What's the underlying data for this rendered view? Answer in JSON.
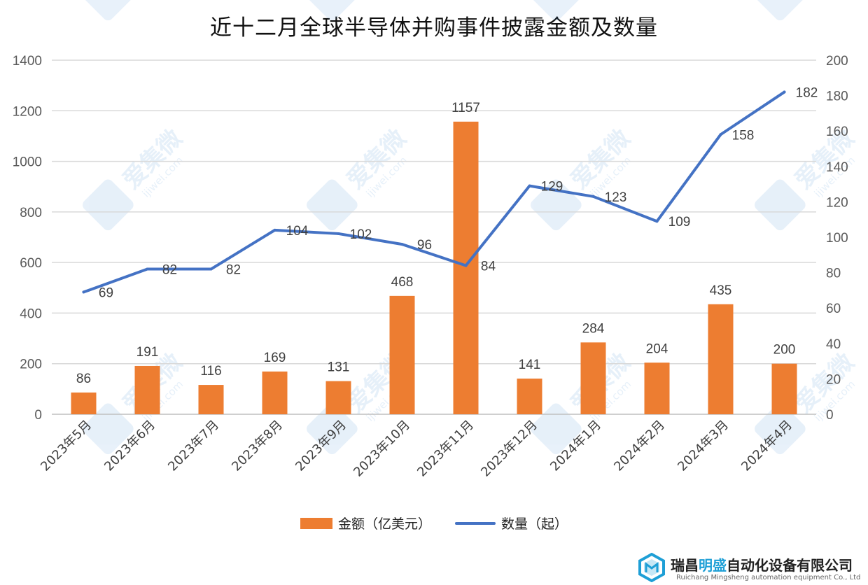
{
  "chart_data": {
    "type": "bar",
    "title": "近十二月全球半导体并购事件披露金额及数量",
    "categories": [
      "2023年5月",
      "2023年6月",
      "2023年7月",
      "2023年8月",
      "2023年9月",
      "2023年10月",
      "2023年11月",
      "2023年12月",
      "2024年1月",
      "2024年2月",
      "2024年3月",
      "2024年4月"
    ],
    "series": [
      {
        "name": "金额（亿美元）",
        "type": "bar",
        "axis": "left",
        "color": "#ed7d31",
        "values": [
          86,
          191,
          116,
          169,
          131,
          468,
          1157,
          141,
          284,
          204,
          435,
          200
        ]
      },
      {
        "name": "数量（起）",
        "type": "line",
        "axis": "right",
        "color": "#4472c4",
        "values": [
          69,
          82,
          82,
          104,
          102,
          96,
          84,
          129,
          123,
          109,
          158,
          182
        ]
      }
    ],
    "y_left": {
      "min": 0,
      "max": 1400,
      "ticks": [
        0,
        200,
        400,
        600,
        800,
        1000,
        1200,
        1400
      ]
    },
    "y_right": {
      "min": 0,
      "max": 200,
      "ticks": [
        0,
        20,
        40,
        60,
        80,
        100,
        120,
        140,
        160,
        180,
        200
      ]
    },
    "grid": true,
    "legend": "bottom"
  },
  "watermark": {
    "text": "爱集微",
    "sub": "ijiwei.com"
  },
  "logo": {
    "name_a": "瑞昌",
    "name_b": "明盛",
    "name_c": "自动化设备有限公司",
    "subtitle": "Ruichang Mingsheng automation equipment Co., Ltd"
  }
}
